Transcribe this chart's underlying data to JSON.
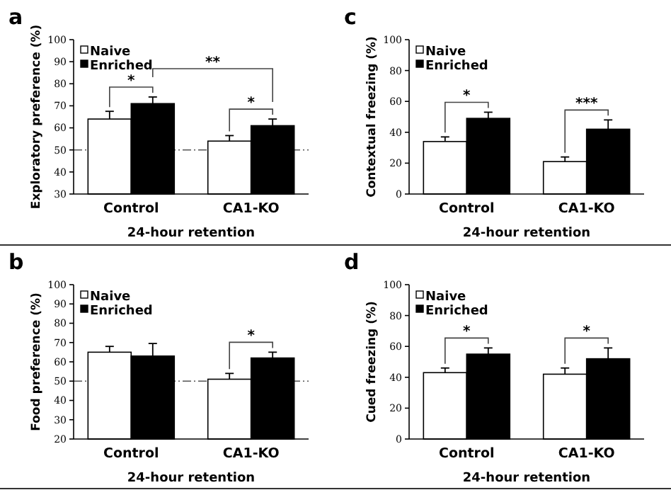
{
  "chart_data": [
    {
      "type": "bar",
      "title": "a",
      "categories": [
        "Control",
        "CA1-KO"
      ],
      "xlabel": "24-hour retention",
      "ylabel": "Exploratory preference (%)",
      "ylim": [
        30,
        100
      ],
      "yticks": [
        30,
        40,
        50,
        60,
        70,
        80,
        90,
        100
      ],
      "legend": "top left",
      "series": [
        {
          "name": "Naive",
          "color": "#ffffff",
          "values": [
            64,
            54
          ],
          "errors": [
            [
              64,
              67.5
            ],
            [
              54,
              56.5
            ]
          ]
        },
        {
          "name": "Enriched",
          "color": "#000000",
          "values": [
            71,
            61
          ],
          "errors": [
            [
              71,
              74
            ],
            [
              61,
              64
            ]
          ]
        }
      ],
      "ref_lines": [
        {
          "axis": "y",
          "value": 50,
          "line_style": "dashed",
          "color": "#555555"
        }
      ],
      "annotations": [
        "*",
        "*",
        "**"
      ]
    },
    {
      "type": "bar",
      "title": "c",
      "categories": [
        "Control",
        "CA1-KO"
      ],
      "xlabel": "24-hour retention",
      "ylabel": "Contextual freezing (%)",
      "ylim": [
        0,
        100
      ],
      "yticks": [
        0,
        20,
        40,
        60,
        80,
        100
      ],
      "legend": "top left",
      "series": [
        {
          "name": "Naive",
          "color": "#ffffff",
          "values": [
            34,
            21
          ],
          "errors": [
            [
              34,
              37
            ],
            [
              21,
              24
            ]
          ]
        },
        {
          "name": "Enriched",
          "color": "#000000",
          "values": [
            49,
            42
          ],
          "errors": [
            [
              49,
              53
            ],
            [
              42,
              48
            ]
          ]
        }
      ],
      "annotations": [
        "*",
        "***"
      ]
    },
    {
      "type": "bar",
      "title": "b",
      "categories": [
        "Control",
        "CA1-KO"
      ],
      "xlabel": "24-hour retention",
      "ylabel": "Food preference (%)",
      "ylim": [
        20,
        100
      ],
      "yticks": [
        20,
        30,
        40,
        50,
        60,
        70,
        80,
        90,
        100
      ],
      "legend": "top left",
      "series": [
        {
          "name": "Naive",
          "color": "#ffffff",
          "values": [
            65,
            51
          ],
          "errors": [
            [
              65,
              68
            ],
            [
              51,
              54
            ]
          ]
        },
        {
          "name": "Enriched",
          "color": "#000000",
          "values": [
            63,
            62
          ],
          "errors": [
            [
              63,
              69.5
            ],
            [
              62,
              65
            ]
          ]
        }
      ],
      "ref_lines": [
        {
          "axis": "y",
          "value": 50,
          "line_style": "dashed",
          "color": "#555555"
        }
      ],
      "annotations": [
        "*"
      ]
    },
    {
      "type": "bar",
      "title": "d",
      "categories": [
        "Control",
        "CA1-KO"
      ],
      "xlabel": "24-hour retention",
      "ylabel": "Cued freezing (%)",
      "ylim": [
        0,
        100
      ],
      "yticks": [
        0,
        20,
        40,
        60,
        80,
        100
      ],
      "legend": "top left",
      "series": [
        {
          "name": "Naive",
          "color": "#ffffff",
          "values": [
            43,
            42
          ],
          "errors": [
            [
              43,
              46
            ],
            [
              42,
              46
            ]
          ]
        },
        {
          "name": "Enriched",
          "color": "#000000",
          "values": [
            55,
            52
          ],
          "errors": [
            [
              55,
              59
            ],
            [
              52,
              59
            ]
          ]
        }
      ],
      "annotations": [
        "*",
        "*"
      ]
    }
  ]
}
